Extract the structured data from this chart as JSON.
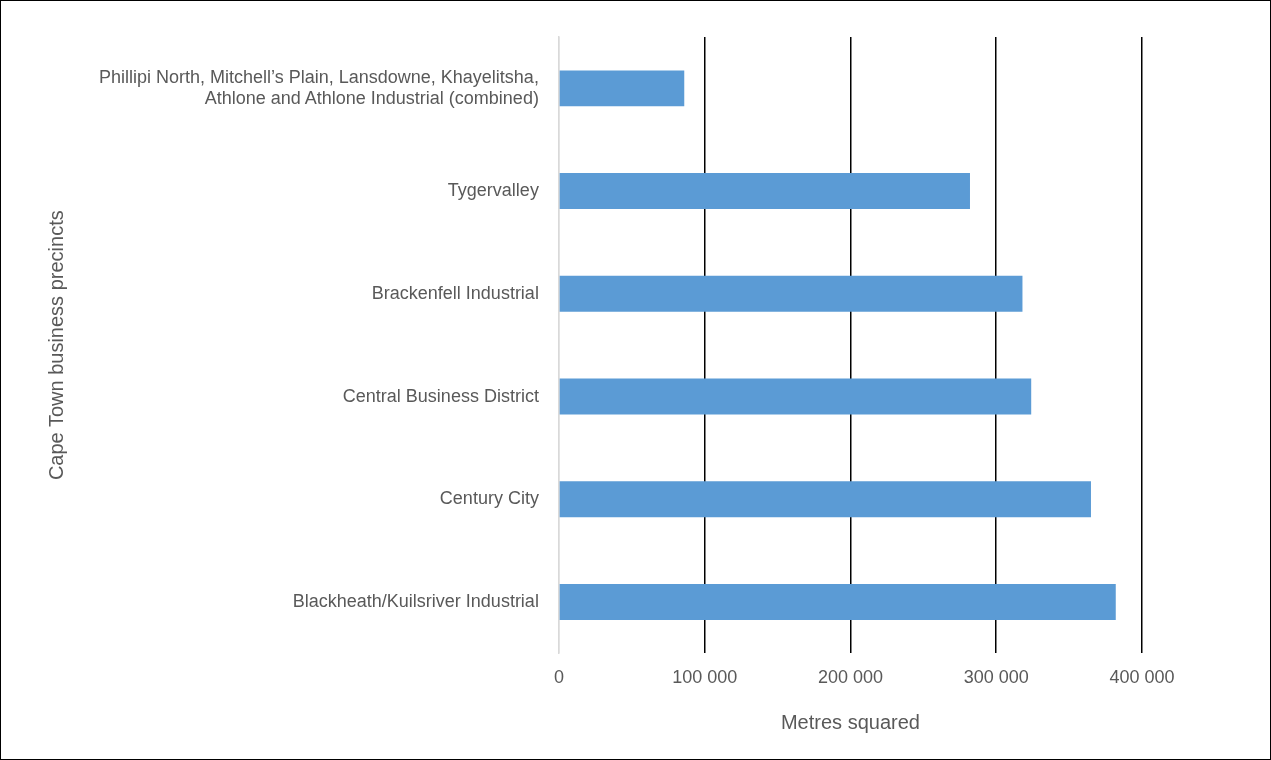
{
  "chart_data": {
    "type": "bar",
    "orientation": "horizontal",
    "xlabel": "Metres squared",
    "ylabel": "Cape Town business precincts",
    "categories": [
      "Phillipi North, Mitchell’s Plain, Lansdowne, Khayelitsha, Athlone and Athlone Industrial (combined)",
      "Tygervalley",
      "Brackenfell Industrial",
      "Central Business District",
      "Century City",
      "Blackheath/Kuilsriver Industrial"
    ],
    "values": [
      86000,
      282000,
      318000,
      324000,
      365000,
      382000
    ],
    "color": "#5b9bd5",
    "xlim": [
      0,
      400000
    ],
    "xticks": [
      {
        "value": 0,
        "label": "0"
      },
      {
        "value": 100000,
        "label": "100 000"
      },
      {
        "value": 200000,
        "label": "200 000"
      },
      {
        "value": 300000,
        "label": "300 000"
      },
      {
        "value": 400000,
        "label": "400 000"
      }
    ],
    "grid": "x",
    "legend": false
  }
}
